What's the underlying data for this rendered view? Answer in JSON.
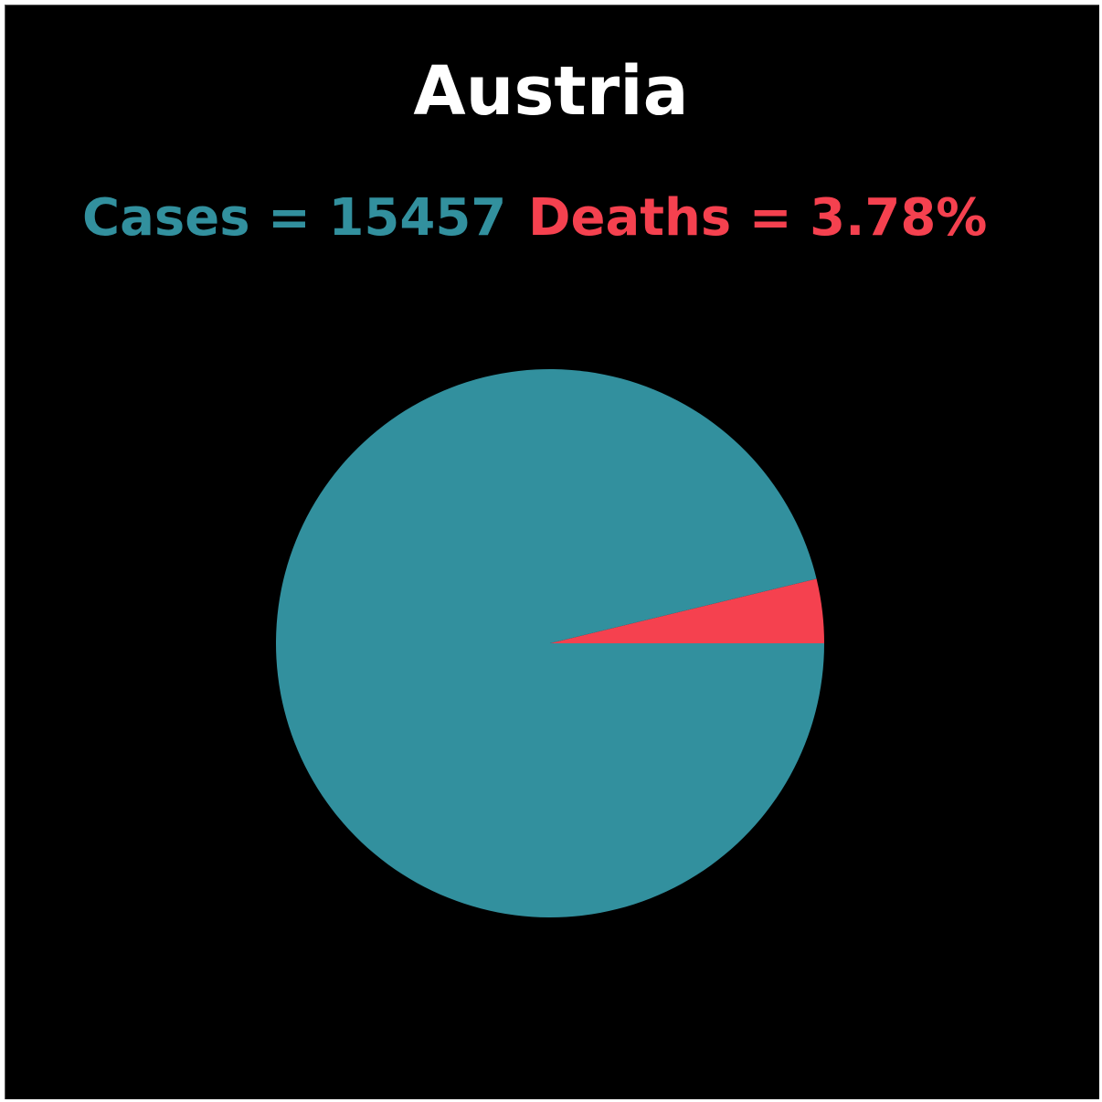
{
  "title": "Austria",
  "colors": {
    "background": "#000000",
    "title": "#ffffff",
    "cases": "#32909e",
    "deaths": "#f5414f"
  },
  "stats": {
    "cases_text": "Cases = 15457",
    "deaths_text": "Deaths = 3.78%"
  },
  "chart_data": {
    "type": "pie",
    "title": "Austria",
    "series": [
      {
        "values": [
          96.22,
          3.78
        ]
      }
    ],
    "categories": [
      "Cases",
      "Deaths"
    ],
    "colors": [
      "#32909e",
      "#f5414f"
    ],
    "start_angle_deg": 0,
    "direction": "counterclockwise"
  }
}
